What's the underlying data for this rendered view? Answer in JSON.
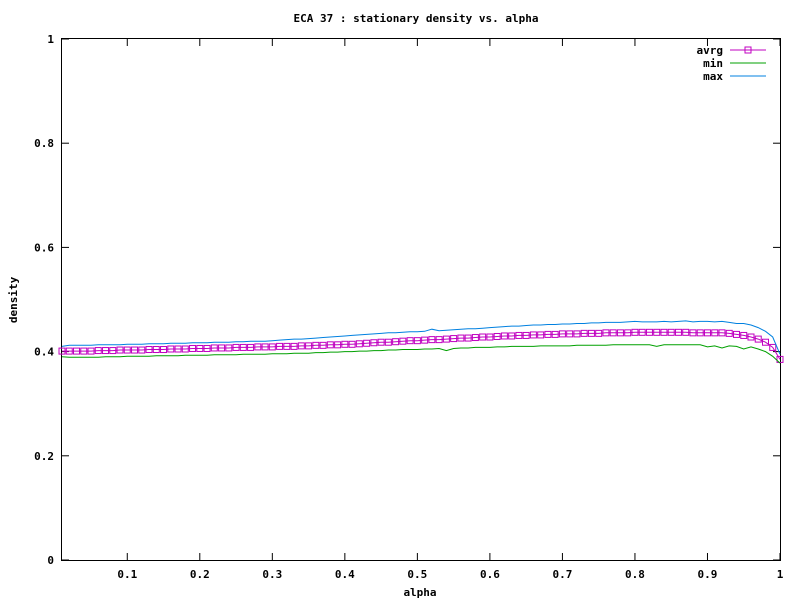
{
  "chart_data": {
    "type": "line",
    "title": "ECA 37 : stationary density vs. alpha",
    "xlabel": "alpha",
    "ylabel": "density",
    "xlim": [
      0.01,
      1.0
    ],
    "ylim": [
      0,
      1
    ],
    "xticks": [
      0.1,
      0.2,
      0.3,
      0.4,
      0.5,
      0.6,
      0.7,
      0.8,
      0.9,
      1
    ],
    "xtick_labels": [
      "0.1",
      "0.2",
      "0.3",
      "0.4",
      "0.5",
      "0.6",
      "0.7",
      "0.8",
      "0.9",
      "1"
    ],
    "yticks": [
      0,
      0.2,
      0.4,
      0.6,
      0.8,
      1
    ],
    "ytick_labels": [
      "0",
      "0.2",
      "0.4",
      "0.6",
      "0.8",
      "1"
    ],
    "legend_position": "top-right",
    "grid": false,
    "series": [
      {
        "name": "avrg",
        "color": "#c000c0",
        "marker": "square",
        "x": [
          0.01,
          0.02,
          0.03,
          0.04,
          0.05,
          0.06,
          0.07,
          0.08,
          0.09,
          0.1,
          0.11,
          0.12,
          0.13,
          0.14,
          0.15,
          0.16,
          0.17,
          0.18,
          0.19,
          0.2,
          0.21,
          0.22,
          0.23,
          0.24,
          0.25,
          0.26,
          0.27,
          0.28,
          0.29,
          0.3,
          0.31,
          0.32,
          0.33,
          0.34,
          0.35,
          0.36,
          0.37,
          0.38,
          0.39,
          0.4,
          0.41,
          0.42,
          0.43,
          0.44,
          0.45,
          0.46,
          0.47,
          0.48,
          0.49,
          0.5,
          0.51,
          0.52,
          0.53,
          0.54,
          0.55,
          0.56,
          0.57,
          0.58,
          0.59,
          0.6,
          0.61,
          0.62,
          0.63,
          0.64,
          0.65,
          0.66,
          0.67,
          0.68,
          0.69,
          0.7,
          0.71,
          0.72,
          0.73,
          0.74,
          0.75,
          0.76,
          0.77,
          0.78,
          0.79,
          0.8,
          0.81,
          0.82,
          0.83,
          0.84,
          0.85,
          0.86,
          0.87,
          0.88,
          0.89,
          0.9,
          0.91,
          0.92,
          0.93,
          0.94,
          0.95,
          0.96,
          0.97,
          0.98,
          0.99,
          1.0
        ],
        "y": [
          0.401,
          0.401,
          0.401,
          0.401,
          0.401,
          0.402,
          0.402,
          0.402,
          0.403,
          0.403,
          0.403,
          0.403,
          0.404,
          0.404,
          0.404,
          0.405,
          0.405,
          0.405,
          0.406,
          0.406,
          0.406,
          0.407,
          0.407,
          0.407,
          0.408,
          0.408,
          0.408,
          0.409,
          0.409,
          0.409,
          0.41,
          0.41,
          0.41,
          0.411,
          0.411,
          0.412,
          0.412,
          0.413,
          0.413,
          0.414,
          0.414,
          0.415,
          0.416,
          0.417,
          0.418,
          0.418,
          0.419,
          0.42,
          0.421,
          0.421,
          0.422,
          0.423,
          0.423,
          0.424,
          0.425,
          0.426,
          0.426,
          0.427,
          0.428,
          0.428,
          0.429,
          0.43,
          0.43,
          0.431,
          0.431,
          0.432,
          0.432,
          0.433,
          0.433,
          0.434,
          0.434,
          0.434,
          0.435,
          0.435,
          0.435,
          0.436,
          0.436,
          0.436,
          0.436,
          0.437,
          0.437,
          0.437,
          0.437,
          0.437,
          0.437,
          0.437,
          0.437,
          0.436,
          0.436,
          0.436,
          0.436,
          0.436,
          0.435,
          0.433,
          0.431,
          0.428,
          0.424,
          0.418,
          0.408,
          0.385
        ]
      },
      {
        "name": "min",
        "color": "#00a000",
        "x": [
          0.01,
          0.02,
          0.03,
          0.04,
          0.05,
          0.06,
          0.07,
          0.08,
          0.09,
          0.1,
          0.11,
          0.12,
          0.13,
          0.14,
          0.15,
          0.16,
          0.17,
          0.18,
          0.19,
          0.2,
          0.21,
          0.22,
          0.23,
          0.24,
          0.25,
          0.26,
          0.27,
          0.28,
          0.29,
          0.3,
          0.31,
          0.32,
          0.33,
          0.34,
          0.35,
          0.36,
          0.37,
          0.38,
          0.39,
          0.4,
          0.41,
          0.42,
          0.43,
          0.44,
          0.45,
          0.46,
          0.47,
          0.48,
          0.49,
          0.5,
          0.51,
          0.52,
          0.53,
          0.54,
          0.55,
          0.56,
          0.57,
          0.58,
          0.59,
          0.6,
          0.61,
          0.62,
          0.63,
          0.64,
          0.65,
          0.66,
          0.67,
          0.68,
          0.69,
          0.7,
          0.71,
          0.72,
          0.73,
          0.74,
          0.75,
          0.76,
          0.77,
          0.78,
          0.79,
          0.8,
          0.81,
          0.82,
          0.83,
          0.84,
          0.85,
          0.86,
          0.87,
          0.88,
          0.89,
          0.9,
          0.91,
          0.92,
          0.93,
          0.94,
          0.95,
          0.96,
          0.97,
          0.98,
          0.99,
          1.0
        ],
        "y": [
          0.39,
          0.389,
          0.389,
          0.389,
          0.389,
          0.389,
          0.39,
          0.39,
          0.39,
          0.391,
          0.391,
          0.391,
          0.391,
          0.392,
          0.392,
          0.392,
          0.392,
          0.393,
          0.393,
          0.393,
          0.393,
          0.394,
          0.394,
          0.394,
          0.394,
          0.395,
          0.395,
          0.395,
          0.395,
          0.396,
          0.396,
          0.396,
          0.397,
          0.397,
          0.397,
          0.398,
          0.398,
          0.399,
          0.399,
          0.4,
          0.4,
          0.401,
          0.401,
          0.402,
          0.402,
          0.403,
          0.403,
          0.404,
          0.404,
          0.404,
          0.405,
          0.405,
          0.406,
          0.402,
          0.406,
          0.407,
          0.407,
          0.408,
          0.408,
          0.408,
          0.409,
          0.409,
          0.41,
          0.41,
          0.41,
          0.41,
          0.411,
          0.411,
          0.411,
          0.411,
          0.411,
          0.412,
          0.412,
          0.412,
          0.412,
          0.412,
          0.413,
          0.413,
          0.413,
          0.413,
          0.413,
          0.413,
          0.41,
          0.413,
          0.413,
          0.413,
          0.413,
          0.413,
          0.413,
          0.409,
          0.411,
          0.407,
          0.411,
          0.41,
          0.405,
          0.409,
          0.405,
          0.4,
          0.391,
          0.378
        ]
      },
      {
        "name": "max",
        "color": "#0080e0",
        "x": [
          0.01,
          0.02,
          0.03,
          0.04,
          0.05,
          0.06,
          0.07,
          0.08,
          0.09,
          0.1,
          0.11,
          0.12,
          0.13,
          0.14,
          0.15,
          0.16,
          0.17,
          0.18,
          0.19,
          0.2,
          0.21,
          0.22,
          0.23,
          0.24,
          0.25,
          0.26,
          0.27,
          0.28,
          0.29,
          0.3,
          0.31,
          0.32,
          0.33,
          0.34,
          0.35,
          0.36,
          0.37,
          0.38,
          0.39,
          0.4,
          0.41,
          0.42,
          0.43,
          0.44,
          0.45,
          0.46,
          0.47,
          0.48,
          0.49,
          0.5,
          0.51,
          0.52,
          0.53,
          0.54,
          0.55,
          0.56,
          0.57,
          0.58,
          0.59,
          0.6,
          0.61,
          0.62,
          0.63,
          0.64,
          0.65,
          0.66,
          0.67,
          0.68,
          0.69,
          0.7,
          0.71,
          0.72,
          0.73,
          0.74,
          0.75,
          0.76,
          0.77,
          0.78,
          0.79,
          0.8,
          0.81,
          0.82,
          0.83,
          0.84,
          0.85,
          0.86,
          0.87,
          0.88,
          0.89,
          0.9,
          0.91,
          0.92,
          0.93,
          0.94,
          0.95,
          0.96,
          0.97,
          0.98,
          0.99,
          1.0
        ],
        "y": [
          0.41,
          0.412,
          0.412,
          0.412,
          0.412,
          0.413,
          0.413,
          0.413,
          0.413,
          0.414,
          0.414,
          0.414,
          0.415,
          0.415,
          0.415,
          0.416,
          0.416,
          0.416,
          0.417,
          0.417,
          0.417,
          0.418,
          0.418,
          0.418,
          0.419,
          0.419,
          0.42,
          0.42,
          0.42,
          0.421,
          0.422,
          0.423,
          0.424,
          0.424,
          0.425,
          0.426,
          0.427,
          0.428,
          0.429,
          0.43,
          0.431,
          0.432,
          0.433,
          0.434,
          0.435,
          0.436,
          0.436,
          0.437,
          0.438,
          0.438,
          0.439,
          0.443,
          0.44,
          0.441,
          0.442,
          0.443,
          0.444,
          0.444,
          0.445,
          0.446,
          0.447,
          0.448,
          0.449,
          0.449,
          0.45,
          0.451,
          0.451,
          0.452,
          0.452,
          0.453,
          0.453,
          0.454,
          0.454,
          0.455,
          0.455,
          0.456,
          0.456,
          0.456,
          0.457,
          0.458,
          0.457,
          0.457,
          0.457,
          0.458,
          0.457,
          0.458,
          0.459,
          0.457,
          0.458,
          0.458,
          0.457,
          0.458,
          0.456,
          0.454,
          0.454,
          0.451,
          0.446,
          0.439,
          0.428,
          0.395
        ]
      }
    ]
  }
}
